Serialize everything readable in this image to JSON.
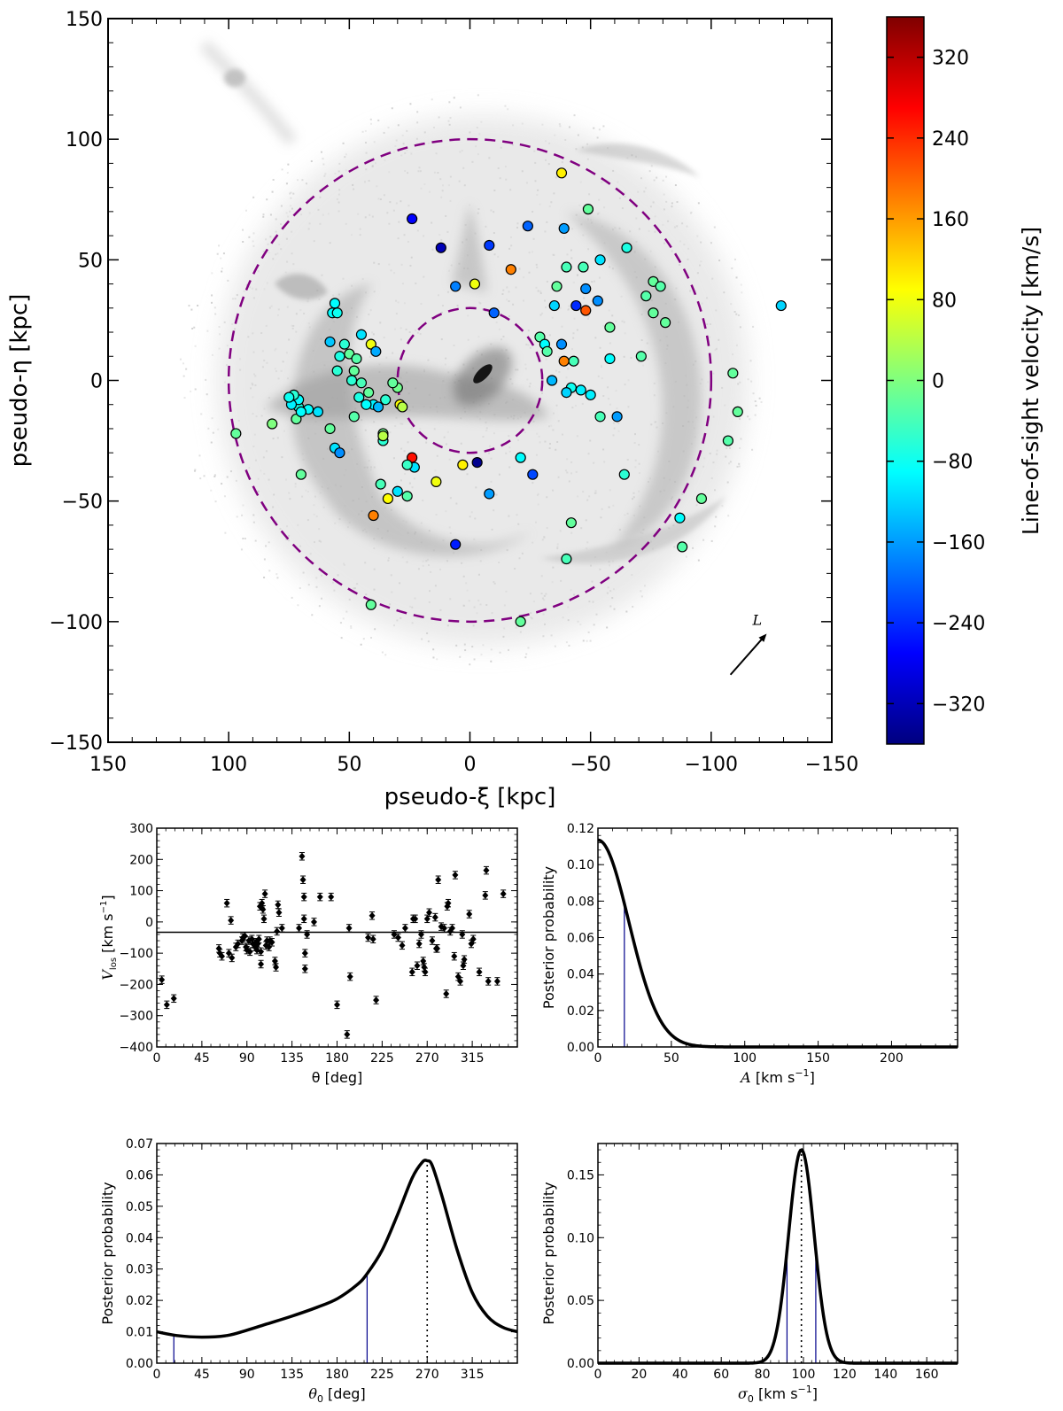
{
  "colors": {
    "axis": "#000000",
    "dashed_circle": "#800080",
    "hpd_line": "#00008b",
    "curve": "#000000",
    "halo_gray": "#9a9a9a"
  },
  "chart_data": [
    {
      "id": "main_map",
      "type": "scatter",
      "title": "",
      "xlabel": "pseudo-ξ [kpc]",
      "ylabel": "pseudo-η [kpc]",
      "xlim": [
        150,
        -150
      ],
      "ylim": [
        -150,
        150
      ],
      "x_ticks": [
        150,
        100,
        50,
        0,
        -50,
        -100,
        -150
      ],
      "y_ticks": [
        -150,
        -100,
        -50,
        0,
        50,
        100,
        150
      ],
      "x_tick_labels": [
        "150",
        "100",
        "50",
        "0",
        "−50",
        "−100",
        "−150"
      ],
      "y_tick_labels": [
        "−150",
        "−100",
        "−50",
        "0",
        "50",
        "100",
        "150"
      ],
      "circles": [
        {
          "center": [
            0,
            0
          ],
          "radius": 30,
          "style": "dashed",
          "color": "#800080"
        },
        {
          "center": [
            0,
            0
          ],
          "radius": 100,
          "style": "dashed",
          "color": "#800080"
        }
      ],
      "arrow_label": "L",
      "arrow": {
        "from": [
          -108,
          -122
        ],
        "to": [
          -123,
          -105
        ]
      },
      "colorbar": {
        "label": "Line-of-sight velocity [km/s]",
        "range": [
          -360,
          360
        ],
        "ticks": [
          -320,
          -240,
          -160,
          -80,
          0,
          80,
          160,
          240,
          320
        ],
        "tick_labels": [
          "−320",
          "−240",
          "−160",
          "−80",
          "0",
          "80",
          "160",
          "240",
          "320"
        ],
        "colormap": "jet"
      },
      "points": [
        [
          97,
          -22,
          -20
        ],
        [
          82,
          -18,
          0
        ],
        [
          70,
          -39,
          -20
        ],
        [
          41,
          -93,
          -20
        ],
        [
          -21,
          -100,
          -20
        ],
        [
          -129,
          31,
          -120
        ],
        [
          -109,
          3,
          -20
        ],
        [
          -111,
          -13,
          -20
        ],
        [
          -107,
          -25,
          -30
        ],
        [
          -96,
          -49,
          -20
        ],
        [
          -87,
          -57,
          -90
        ],
        [
          -88,
          -69,
          -30
        ],
        [
          -38,
          86,
          100
        ],
        [
          -49,
          71,
          -20
        ],
        [
          -24,
          64,
          -200
        ],
        [
          -39,
          63,
          -160
        ],
        [
          -47,
          47,
          -40
        ],
        [
          -40,
          47,
          -40
        ],
        [
          -54,
          50,
          -110
        ],
        [
          -65,
          55,
          -70
        ],
        [
          -36,
          39,
          -20
        ],
        [
          -48,
          38,
          -170
        ],
        [
          -53,
          33,
          -170
        ],
        [
          -44,
          31,
          -240
        ],
        [
          -48,
          29,
          210
        ],
        [
          -35,
          31,
          -120
        ],
        [
          -76,
          41,
          -20
        ],
        [
          -79,
          39,
          -30
        ],
        [
          -73,
          35,
          -30
        ],
        [
          -76,
          28,
          -20
        ],
        [
          -81,
          24,
          -20
        ],
        [
          -58,
          22,
          -20
        ],
        [
          -38,
          15,
          -170
        ],
        [
          -29,
          18,
          -30
        ],
        [
          -31,
          15,
          -90
        ],
        [
          -32,
          12,
          -30
        ],
        [
          -39,
          8,
          180
        ],
        [
          -43,
          8,
          -40
        ],
        [
          -58,
          9,
          -90
        ],
        [
          -71,
          10,
          -30
        ],
        [
          -42,
          -3,
          -80
        ],
        [
          -46,
          -4,
          -100
        ],
        [
          -34,
          0,
          -140
        ],
        [
          -40,
          -5,
          -120
        ],
        [
          -50,
          -6,
          -100
        ],
        [
          -54,
          -15,
          -40
        ],
        [
          -61,
          -15,
          -160
        ],
        [
          -64,
          -39,
          -60
        ],
        [
          -42,
          -59,
          -20
        ],
        [
          -40,
          -74,
          -40
        ],
        [
          -21,
          -32,
          -90
        ],
        [
          -26,
          -39,
          -220
        ],
        [
          -8,
          -47,
          -160
        ],
        [
          -3,
          -34,
          -350
        ],
        [
          3,
          -35,
          100
        ],
        [
          6,
          -68,
          -250
        ],
        [
          24,
          -32,
          260
        ],
        [
          23,
          -36,
          -110
        ],
        [
          14,
          -42,
          80
        ],
        [
          26,
          -35,
          -50
        ],
        [
          30,
          -46,
          -110
        ],
        [
          26,
          -48,
          -30
        ],
        [
          34,
          -49,
          90
        ],
        [
          40,
          -56,
          180
        ],
        [
          37,
          -43,
          -40
        ],
        [
          36,
          -22,
          -10
        ],
        [
          36,
          -25,
          -60
        ],
        [
          36,
          -23,
          40
        ],
        [
          29,
          -10,
          90
        ],
        [
          28,
          -11,
          40
        ],
        [
          30,
          -3,
          -10
        ],
        [
          32,
          -1,
          -20
        ],
        [
          40,
          -10,
          -100
        ],
        [
          38,
          -11,
          -140
        ],
        [
          35,
          -8,
          -60
        ],
        [
          46,
          -7,
          -70
        ],
        [
          48,
          -15,
          -30
        ],
        [
          58,
          -20,
          -20
        ],
        [
          56,
          -28,
          -110
        ],
        [
          54,
          -30,
          -170
        ],
        [
          63,
          -13,
          -110
        ],
        [
          67,
          -12,
          -90
        ],
        [
          71,
          -11,
          -70
        ],
        [
          72,
          -16,
          -20
        ],
        [
          71,
          -8,
          -90
        ],
        [
          73,
          -6,
          -60
        ],
        [
          74,
          -10,
          -100
        ],
        [
          75,
          -7,
          -80
        ],
        [
          70,
          -13,
          -90
        ],
        [
          55,
          4,
          -60
        ],
        [
          50,
          11,
          -20
        ],
        [
          54,
          10,
          -70
        ],
        [
          48,
          4,
          -20
        ],
        [
          49,
          0,
          -60
        ],
        [
          45,
          -1,
          -40
        ],
        [
          43,
          -10,
          -90
        ],
        [
          47,
          9,
          -30
        ],
        [
          52,
          15,
          -60
        ],
        [
          58,
          16,
          -130
        ],
        [
          57,
          28,
          -90
        ],
        [
          55,
          28,
          -80
        ],
        [
          56,
          32,
          -90
        ],
        [
          45,
          19,
          -110
        ],
        [
          41,
          15,
          80
        ],
        [
          39,
          12,
          -150
        ],
        [
          42,
          -5,
          -20
        ],
        [
          24,
          67,
          -270
        ],
        [
          12,
          55,
          -320
        ],
        [
          -8,
          56,
          -230
        ],
        [
          -17,
          46,
          180
        ],
        [
          6,
          39,
          -180
        ],
        [
          -2,
          40,
          80
        ],
        [
          -10,
          28,
          -200
        ]
      ]
    },
    {
      "id": "vlos_theta",
      "type": "scatter",
      "title": "",
      "xlabel": "θ [deg]",
      "ylabel": "V_los [km s⁻¹]",
      "ylabel_main": "V",
      "ylabel_sub": "los",
      "ylabel_rest": " [km s",
      "ylabel_sup": "−1",
      "ylabel_end": "]",
      "xlim": [
        0,
        360
      ],
      "ylim": [
        -400,
        300
      ],
      "x_ticks": [
        0,
        45,
        90,
        135,
        180,
        225,
        270,
        315
      ],
      "y_ticks": [
        -400,
        -300,
        -200,
        -100,
        0,
        100,
        200,
        300
      ],
      "x_tick_labels": [
        "0",
        "45",
        "90",
        "135",
        "180",
        "225",
        "270",
        "315"
      ],
      "y_tick_labels": [
        "−400",
        "−300",
        "−200",
        "−100",
        "0",
        "100",
        "200",
        "300"
      ],
      "mean_line": -33,
      "points": [
        [
          5,
          -185
        ],
        [
          10,
          -265
        ],
        [
          17,
          -245
        ],
        [
          62,
          -85
        ],
        [
          63,
          -100
        ],
        [
          65,
          -110
        ],
        [
          70,
          60
        ],
        [
          72,
          -100
        ],
        [
          75,
          -115
        ],
        [
          74,
          5
        ],
        [
          79,
          -80
        ],
        [
          81,
          -70
        ],
        [
          85,
          -60
        ],
        [
          86,
          -50
        ],
        [
          88,
          -45
        ],
        [
          89,
          -80
        ],
        [
          90,
          -90
        ],
        [
          92,
          -60
        ],
        [
          93,
          -95
        ],
        [
          95,
          -55
        ],
        [
          96,
          -70
        ],
        [
          98,
          -80
        ],
        [
          99,
          -65
        ],
        [
          100,
          -90
        ],
        [
          101,
          -70
        ],
        [
          102,
          -55
        ],
        [
          103,
          50
        ],
        [
          104,
          -135
        ],
        [
          104,
          -95
        ],
        [
          105,
          60
        ],
        [
          106,
          40
        ],
        [
          107,
          10
        ],
        [
          108,
          90
        ],
        [
          109,
          -75
        ],
        [
          110,
          -60
        ],
        [
          112,
          -80
        ],
        [
          113,
          -60
        ],
        [
          115,
          -65
        ],
        [
          118,
          -125
        ],
        [
          119,
          -145
        ],
        [
          120,
          -30
        ],
        [
          121,
          55
        ],
        [
          122,
          30
        ],
        [
          125,
          -20
        ],
        [
          142,
          -20
        ],
        [
          145,
          210
        ],
        [
          146,
          135
        ],
        [
          147,
          80
        ],
        [
          147,
          10
        ],
        [
          148,
          -100
        ],
        [
          148,
          -150
        ],
        [
          150,
          -40
        ],
        [
          157,
          0
        ],
        [
          163,
          80
        ],
        [
          174,
          80
        ],
        [
          180,
          -265
        ],
        [
          190,
          -360
        ],
        [
          193,
          -175
        ],
        [
          192,
          -20
        ],
        [
          211,
          -50
        ],
        [
          215,
          20
        ],
        [
          216,
          -55
        ],
        [
          219,
          -250
        ],
        [
          237,
          -40
        ],
        [
          241,
          -50
        ],
        [
          245,
          -75
        ],
        [
          248,
          -20
        ],
        [
          255,
          -160
        ],
        [
          256,
          10
        ],
        [
          258,
          10
        ],
        [
          260,
          -140
        ],
        [
          262,
          -70
        ],
        [
          264,
          -40
        ],
        [
          266,
          -125
        ],
        [
          267,
          -145
        ],
        [
          268,
          -160
        ],
        [
          270,
          10
        ],
        [
          272,
          30
        ],
        [
          275,
          -60
        ],
        [
          278,
          15
        ],
        [
          279,
          -85
        ],
        [
          280,
          -85
        ],
        [
          281,
          135
        ],
        [
          284,
          -15
        ],
        [
          287,
          -20
        ],
        [
          289,
          -230
        ],
        [
          290,
          50
        ],
        [
          291,
          60
        ],
        [
          293,
          -30
        ],
        [
          295,
          -20
        ],
        [
          297,
          -110
        ],
        [
          298,
          150
        ],
        [
          301,
          -175
        ],
        [
          303,
          -190
        ],
        [
          305,
          -40
        ],
        [
          306,
          -140
        ],
        [
          307,
          -120
        ],
        [
          312,
          25
        ],
        [
          314,
          -70
        ],
        [
          316,
          -55
        ],
        [
          322,
          -160
        ],
        [
          328,
          85
        ],
        [
          329,
          165
        ],
        [
          331,
          -190
        ],
        [
          340,
          -190
        ],
        [
          346,
          90
        ]
      ]
    },
    {
      "id": "post_A",
      "type": "line",
      "title": "",
      "xlabel": "A [km s⁻¹]",
      "xlabel_main": "A",
      "xlabel_rest": " [km s",
      "xlabel_sup": "−1",
      "xlabel_end": "]",
      "ylabel": "Posterior probability",
      "xlim": [
        0,
        245
      ],
      "ylim": [
        0,
        0.12
      ],
      "x_ticks": [
        0,
        50,
        100,
        150,
        200
      ],
      "y_ticks": [
        0,
        0.02,
        0.04,
        0.06,
        0.08,
        0.1,
        0.12
      ],
      "x_tick_labels": [
        "0",
        "50",
        "100",
        "150",
        "200"
      ],
      "y_tick_labels": [
        "0.00",
        "0.02",
        "0.04",
        "0.06",
        "0.08",
        "0.10",
        "0.12"
      ],
      "curve_model": {
        "kind": "half_gaussian",
        "amplitude": 0.1135,
        "center": 0,
        "sigma": 21
      },
      "vlines": [
        {
          "x": 18,
          "style": "solid",
          "color": "#00008b"
        }
      ]
    },
    {
      "id": "post_theta0",
      "type": "line",
      "title": "",
      "xlabel": "θ₀ [deg]",
      "xlabel_main": "θ",
      "xlabel_sub": "0",
      "xlabel_rest": " [deg]",
      "ylabel": "Posterior probability",
      "xlim": [
        0,
        360
      ],
      "ylim": [
        0,
        0.07
      ],
      "x_ticks": [
        0,
        45,
        90,
        135,
        180,
        225,
        270,
        315
      ],
      "y_ticks": [
        0,
        0.01,
        0.02,
        0.03,
        0.04,
        0.05,
        0.06,
        0.07
      ],
      "x_tick_labels": [
        "0",
        "45",
        "90",
        "135",
        "180",
        "225",
        "270",
        "315"
      ],
      "y_tick_labels": [
        "0.00",
        "0.01",
        "0.02",
        "0.03",
        "0.04",
        "0.05",
        "0.06",
        "0.07"
      ],
      "curve": {
        "x": [
          0,
          20,
          45,
          70,
          90,
          110,
          135,
          160,
          180,
          200,
          210,
          225,
          240,
          255,
          265,
          270,
          275,
          285,
          300,
          315,
          330,
          345,
          360
        ],
        "y": [
          0.01,
          0.0088,
          0.0083,
          0.0088,
          0.0105,
          0.0125,
          0.015,
          0.0178,
          0.0205,
          0.025,
          0.0285,
          0.036,
          0.047,
          0.059,
          0.064,
          0.0645,
          0.063,
          0.053,
          0.036,
          0.0225,
          0.015,
          0.0115,
          0.01
        ]
      },
      "vlines": [
        {
          "x": 17,
          "style": "solid",
          "color": "#00008b"
        },
        {
          "x": 210,
          "style": "solid",
          "color": "#00008b"
        },
        {
          "x": 270,
          "style": "dotted",
          "color": "#000000"
        }
      ]
    },
    {
      "id": "post_sigma0",
      "type": "line",
      "title": "",
      "xlabel": "σ₀ [km s⁻¹]",
      "xlabel_main": "σ",
      "xlabel_sub": "0",
      "xlabel_rest": " [km s",
      "xlabel_sup": "−1",
      "xlabel_end": "]",
      "ylabel": "Posterior probability",
      "xlim": [
        0,
        175
      ],
      "ylim": [
        0,
        0.175
      ],
      "x_ticks": [
        0,
        20,
        40,
        60,
        80,
        100,
        120,
        140,
        160
      ],
      "y_ticks": [
        0,
        0.05,
        0.1,
        0.15
      ],
      "x_tick_labels": [
        "0",
        "20",
        "40",
        "60",
        "80",
        "100",
        "120",
        "140",
        "160"
      ],
      "y_tick_labels": [
        "0.00",
        "0.05",
        "0.10",
        "0.15"
      ],
      "curve_model": {
        "kind": "gaussian",
        "amplitude": 0.17,
        "center": 99,
        "sigma": 6.2
      },
      "vlines": [
        {
          "x": 92,
          "style": "solid",
          "color": "#00008b"
        },
        {
          "x": 106,
          "style": "solid",
          "color": "#00008b"
        },
        {
          "x": 99,
          "style": "dotted",
          "color": "#000000"
        }
      ]
    }
  ]
}
